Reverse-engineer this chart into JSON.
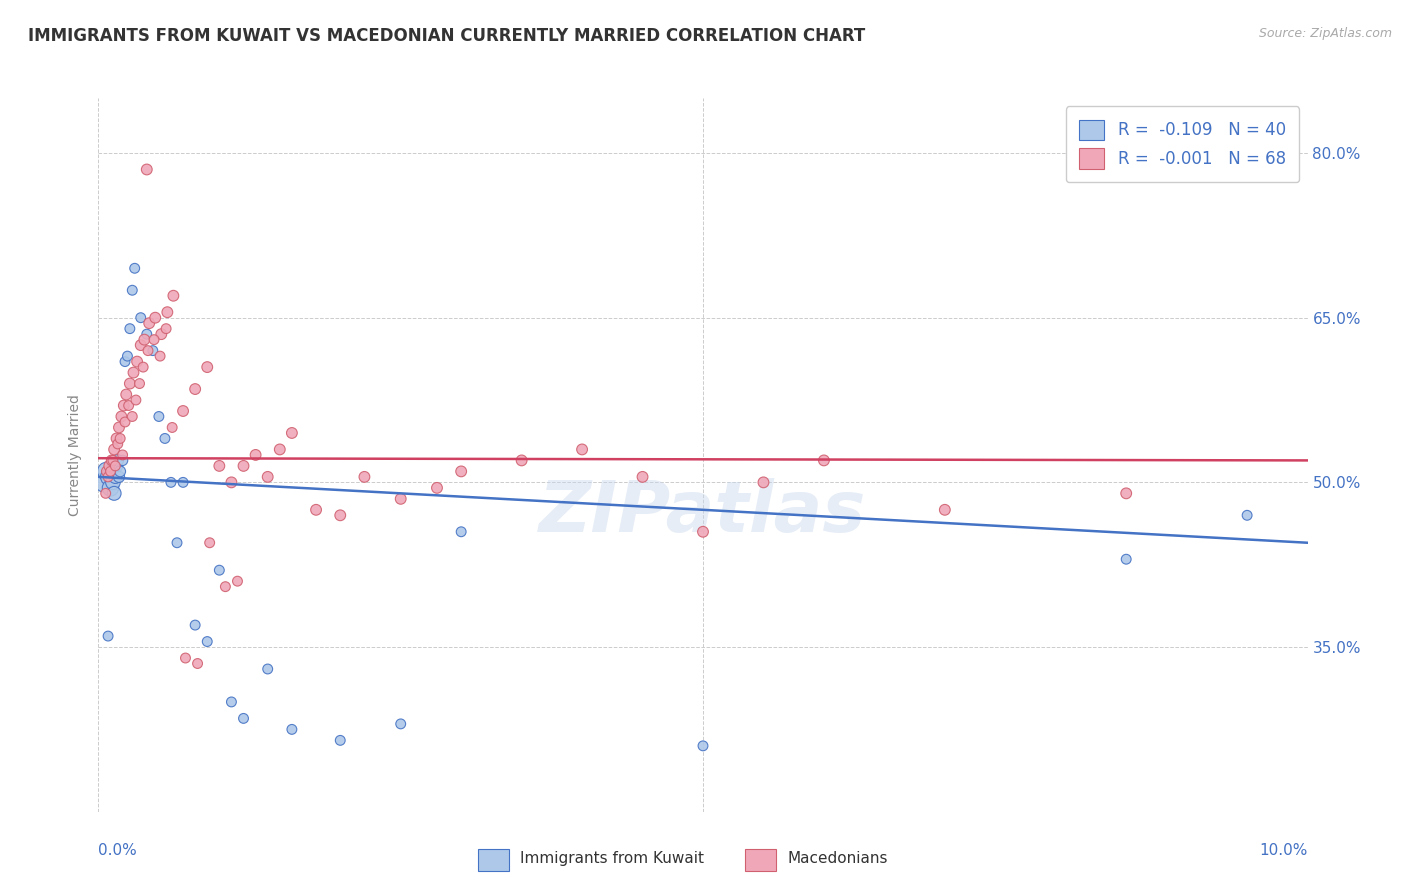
{
  "title": "IMMIGRANTS FROM KUWAIT VS MACEDONIAN CURRENTLY MARRIED CORRELATION CHART",
  "source": "Source: ZipAtlas.com",
  "ylabel": "Currently Married",
  "legend_labels": [
    "Immigrants from Kuwait",
    "Macedonians"
  ],
  "legend_r": [
    "R = -0.109",
    "N = 40"
  ],
  "legend_r2": [
    "R = -0.001",
    "N = 68"
  ],
  "color_blue": "#adc8e8",
  "color_pink": "#f0a8b8",
  "color_blue_dark": "#4472c4",
  "color_pink_dark": "#d06070",
  "color_red_line": "#d04060",
  "color_blue_line": "#4472c4",
  "watermark": "ZIPatlas",
  "xlim": [
    0.0,
    10.0
  ],
  "ylim_bottom": 20.0,
  "ylim_top": 85.0,
  "yticks": [
    35.0,
    50.0,
    65.0,
    80.0
  ],
  "xtick_positions": [
    0.0,
    5.0,
    10.0
  ],
  "blue_scatter_x": [
    0.05,
    0.07,
    0.09,
    0.1,
    0.11,
    0.12,
    0.13,
    0.14,
    0.15,
    0.16,
    0.17,
    0.18,
    0.2,
    0.22,
    0.24,
    0.26,
    0.28,
    0.3,
    0.35,
    0.4,
    0.45,
    0.5,
    0.55,
    0.6,
    0.65,
    0.7,
    0.8,
    0.9,
    1.0,
    1.1,
    1.2,
    1.4,
    1.6,
    2.0,
    2.5,
    3.0,
    5.0,
    8.5,
    9.5,
    0.08
  ],
  "blue_scatter_y": [
    50.0,
    51.0,
    50.5,
    49.5,
    51.0,
    50.0,
    49.0,
    50.5,
    51.5,
    52.0,
    50.5,
    51.0,
    52.0,
    61.0,
    61.5,
    64.0,
    67.5,
    69.5,
    65.0,
    63.5,
    62.0,
    56.0,
    54.0,
    50.0,
    44.5,
    50.0,
    37.0,
    35.5,
    42.0,
    30.0,
    28.5,
    33.0,
    27.5,
    26.5,
    28.0,
    45.5,
    26.0,
    43.0,
    47.0,
    36.0
  ],
  "blue_scatter_size": [
    200,
    180,
    160,
    140,
    120,
    110,
    100,
    90,
    80,
    70,
    65,
    60,
    55,
    50,
    50,
    50,
    50,
    50,
    50,
    50,
    50,
    50,
    50,
    50,
    50,
    50,
    50,
    50,
    50,
    50,
    50,
    50,
    50,
    50,
    50,
    50,
    50,
    50,
    50,
    50
  ],
  "pink_scatter_x": [
    0.4,
    0.07,
    0.09,
    0.11,
    0.13,
    0.15,
    0.17,
    0.19,
    0.21,
    0.23,
    0.26,
    0.29,
    0.32,
    0.35,
    0.38,
    0.42,
    0.47,
    0.52,
    0.57,
    0.62,
    0.7,
    0.8,
    0.9,
    1.0,
    1.1,
    1.2,
    1.3,
    1.4,
    1.5,
    1.6,
    1.8,
    2.0,
    2.2,
    2.5,
    2.8,
    3.0,
    3.5,
    4.0,
    4.5,
    5.0,
    5.5,
    6.0,
    7.0,
    8.5,
    0.06,
    0.08,
    0.1,
    0.12,
    0.14,
    0.16,
    0.18,
    0.2,
    0.22,
    0.25,
    0.28,
    0.31,
    0.34,
    0.37,
    0.41,
    0.46,
    0.51,
    0.56,
    0.61,
    0.72,
    0.82,
    0.92,
    1.05,
    1.15
  ],
  "pink_scatter_y": [
    78.5,
    51.0,
    51.5,
    52.0,
    53.0,
    54.0,
    55.0,
    56.0,
    57.0,
    58.0,
    59.0,
    60.0,
    61.0,
    62.5,
    63.0,
    64.5,
    65.0,
    63.5,
    65.5,
    67.0,
    56.5,
    58.5,
    60.5,
    51.5,
    50.0,
    51.5,
    52.5,
    50.5,
    53.0,
    54.5,
    47.5,
    47.0,
    50.5,
    48.5,
    49.5,
    51.0,
    52.0,
    53.0,
    50.5,
    45.5,
    50.0,
    52.0,
    47.5,
    49.0,
    49.0,
    50.5,
    51.0,
    52.0,
    51.5,
    53.5,
    54.0,
    52.5,
    55.5,
    57.0,
    56.0,
    57.5,
    59.0,
    60.5,
    62.0,
    63.0,
    61.5,
    64.0,
    55.0,
    34.0,
    33.5,
    44.5,
    40.5,
    41.0
  ],
  "pink_scatter_size": [
    60,
    60,
    60,
    60,
    60,
    60,
    60,
    60,
    60,
    60,
    60,
    60,
    60,
    60,
    60,
    60,
    60,
    60,
    60,
    60,
    60,
    60,
    60,
    60,
    60,
    60,
    60,
    60,
    60,
    60,
    60,
    60,
    60,
    60,
    60,
    60,
    60,
    60,
    60,
    60,
    60,
    60,
    60,
    60,
    50,
    50,
    50,
    50,
    50,
    50,
    50,
    50,
    50,
    50,
    50,
    50,
    50,
    50,
    50,
    50,
    50,
    50,
    50,
    50,
    50,
    50,
    50,
    50
  ],
  "blue_trend_x": [
    0.0,
    10.0
  ],
  "blue_trend_y": [
    50.5,
    44.5
  ],
  "pink_trend_x": [
    0.0,
    10.0
  ],
  "pink_trend_y": [
    52.2,
    52.0
  ],
  "grid_color": "#cccccc",
  "background_color": "#ffffff",
  "title_fontsize": 12,
  "axis_label_fontsize": 10,
  "tick_fontsize": 11,
  "legend_fontsize": 12
}
